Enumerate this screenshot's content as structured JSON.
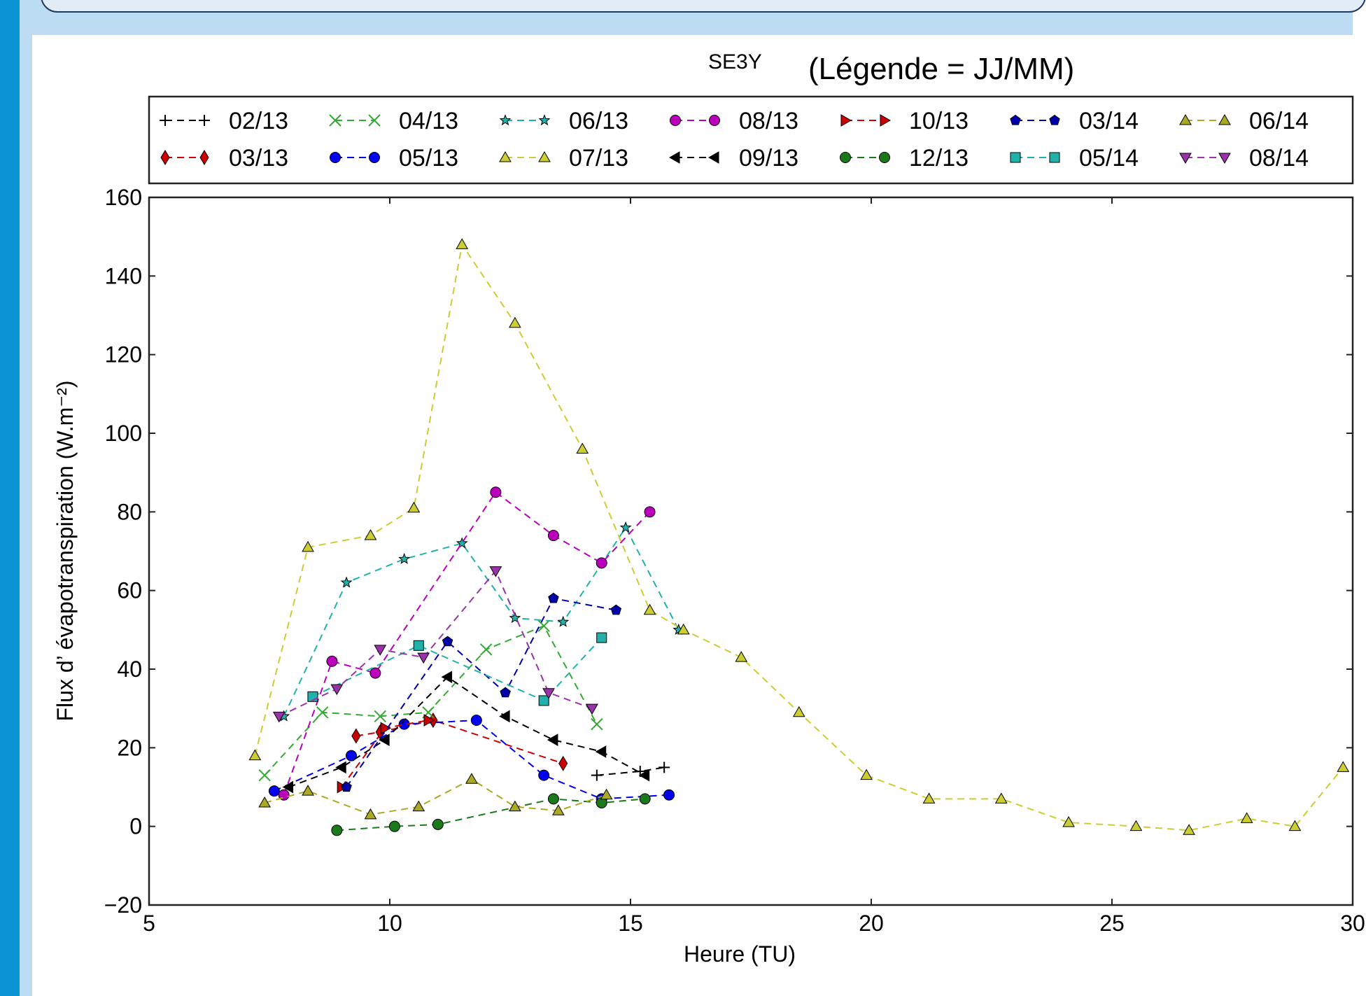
{
  "chart_data": {
    "type": "line",
    "title": "SE3Y",
    "subtitle": "(Légende = JJ/MM)",
    "xlabel": "Heure (TU)",
    "ylabel": "Flux d’ évapotranspiration (W.m⁻²)",
    "xlim": [
      5,
      30
    ],
    "ylim": [
      -20,
      160
    ],
    "xticks": [
      5,
      10,
      15,
      20,
      25,
      30
    ],
    "yticks": [
      -20,
      0,
      20,
      40,
      60,
      80,
      100,
      120,
      140,
      160
    ],
    "grid": false,
    "legend_position": "top",
    "series": [
      {
        "name": "02/13",
        "color": "#000000",
        "marker": "plus",
        "points": [
          [
            14.3,
            13
          ],
          [
            15.2,
            14
          ],
          [
            15.7,
            15
          ]
        ]
      },
      {
        "name": "03/13",
        "color": "#cc0000",
        "marker": "diamond",
        "points": [
          [
            9.3,
            23
          ],
          [
            9.8,
            24
          ],
          [
            10.9,
            27
          ],
          [
            13.6,
            16
          ]
        ]
      },
      {
        "name": "04/13",
        "color": "#33aa33",
        "marker": "x",
        "points": [
          [
            7.4,
            13
          ],
          [
            8.6,
            29
          ],
          [
            9.8,
            28
          ],
          [
            10.8,
            29
          ],
          [
            12.0,
            45
          ],
          [
            13.2,
            51
          ],
          [
            14.3,
            26
          ]
        ]
      },
      {
        "name": "05/13",
        "color": "#0000ee",
        "marker": "circle",
        "points": [
          [
            7.6,
            9
          ],
          [
            9.2,
            18
          ],
          [
            10.3,
            26
          ],
          [
            11.8,
            27
          ],
          [
            13.2,
            13
          ],
          [
            14.4,
            7
          ],
          [
            15.8,
            8
          ]
        ]
      },
      {
        "name": "06/13",
        "color": "#20b2aa",
        "marker": "star",
        "points": [
          [
            7.8,
            28
          ],
          [
            9.1,
            62
          ],
          [
            10.3,
            68
          ],
          [
            11.5,
            72
          ],
          [
            12.6,
            53
          ],
          [
            13.6,
            52
          ],
          [
            14.9,
            76
          ],
          [
            16.0,
            50
          ]
        ]
      },
      {
        "name": "07/13",
        "color": "#cccc33",
        "marker": "tri-up",
        "points": [
          [
            7.2,
            18
          ],
          [
            8.3,
            71
          ],
          [
            9.6,
            74
          ],
          [
            10.5,
            81
          ],
          [
            11.5,
            148
          ],
          [
            12.6,
            128
          ],
          [
            14.0,
            96
          ],
          [
            15.4,
            55
          ],
          [
            16.1,
            50
          ],
          [
            17.3,
            43
          ],
          [
            18.5,
            29
          ],
          [
            19.9,
            13
          ],
          [
            21.2,
            7
          ],
          [
            22.7,
            7
          ],
          [
            24.1,
            1
          ],
          [
            25.5,
            0
          ],
          [
            26.6,
            -1
          ],
          [
            27.8,
            2
          ],
          [
            28.8,
            0
          ],
          [
            29.8,
            15
          ]
        ]
      },
      {
        "name": "08/13",
        "color": "#bb00bb",
        "marker": "circle",
        "points": [
          [
            7.8,
            8
          ],
          [
            8.8,
            42
          ],
          [
            9.7,
            39
          ],
          [
            12.2,
            85
          ],
          [
            13.4,
            74
          ],
          [
            14.4,
            67
          ],
          [
            15.4,
            80
          ]
        ]
      },
      {
        "name": "09/13",
        "color": "#000000",
        "marker": "tri-left",
        "points": [
          [
            7.9,
            10
          ],
          [
            9.0,
            15
          ],
          [
            9.9,
            22
          ],
          [
            11.2,
            38
          ],
          [
            12.4,
            28
          ],
          [
            13.4,
            22
          ],
          [
            14.4,
            19
          ],
          [
            15.3,
            13
          ]
        ]
      },
      {
        "name": "10/13",
        "color": "#cc0000",
        "marker": "tri-right",
        "points": [
          [
            9.0,
            10
          ],
          [
            9.9,
            25
          ],
          [
            10.8,
            27
          ]
        ]
      },
      {
        "name": "12/13",
        "color": "#1a7a1a",
        "marker": "circle",
        "points": [
          [
            8.9,
            -1
          ],
          [
            10.1,
            0
          ],
          [
            11.0,
            0.5
          ],
          [
            13.4,
            7
          ],
          [
            14.4,
            6
          ],
          [
            15.3,
            7
          ]
        ]
      },
      {
        "name": "03/14",
        "color": "#0000aa",
        "marker": "pentagon",
        "points": [
          [
            9.1,
            10
          ],
          [
            11.2,
            47
          ],
          [
            12.4,
            34
          ],
          [
            13.4,
            58
          ],
          [
            14.7,
            55
          ]
        ]
      },
      {
        "name": "05/14",
        "color": "#20b2aa",
        "marker": "square",
        "points": [
          [
            8.4,
            33
          ],
          [
            10.6,
            46
          ],
          [
            13.2,
            32
          ],
          [
            14.4,
            48
          ]
        ]
      },
      {
        "name": "06/14",
        "color": "#aaaa22",
        "marker": "tri-up",
        "points": [
          [
            7.4,
            6
          ],
          [
            8.3,
            9
          ],
          [
            9.6,
            3
          ],
          [
            10.6,
            5
          ],
          [
            11.7,
            12
          ],
          [
            12.6,
            5
          ],
          [
            13.5,
            4
          ],
          [
            14.5,
            8
          ]
        ]
      },
      {
        "name": "08/14",
        "color": "#9933aa",
        "marker": "tri-down",
        "points": [
          [
            7.7,
            28
          ],
          [
            8.9,
            35
          ],
          [
            9.8,
            45
          ],
          [
            10.7,
            43
          ],
          [
            12.2,
            65
          ],
          [
            13.3,
            34
          ],
          [
            14.2,
            30
          ]
        ]
      }
    ]
  }
}
